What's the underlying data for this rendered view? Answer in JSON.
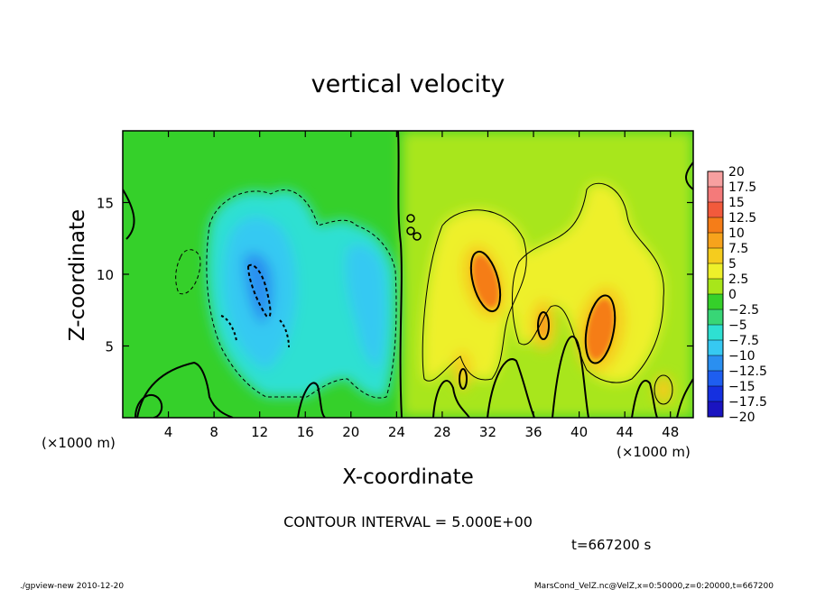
{
  "chart_data": {
    "type": "heatmap",
    "title": "vertical velocity",
    "xlabel": "X-coordinate",
    "ylabel": "Z-coordinate",
    "x_unit_left": "(×1000 m)",
    "x_unit_right": "(×1000 m)",
    "xlim": [
      0,
      50
    ],
    "ylim": [
      0,
      20
    ],
    "x_ticks": [
      4,
      8,
      12,
      16,
      20,
      24,
      28,
      32,
      36,
      40,
      44,
      48
    ],
    "y_ticks": [
      5,
      10,
      15
    ],
    "contour_interval_text": "CONTOUR INTERVAL = 5.000E+00",
    "time_text": "t=667200 s",
    "colorbar": {
      "levels": [
        "20",
        "17.5",
        "15",
        "12.5",
        "10",
        "7.5",
        "5",
        "2.5",
        "0",
        "-2.5",
        "-5",
        "-7.5",
        "-10",
        "-12.5",
        "-15",
        "-17.5",
        "-20"
      ],
      "colors": [
        "#f7a0a0",
        "#f47a7a",
        "#f25a3c",
        "#f57d18",
        "#f7a31c",
        "#f5cc1e",
        "#eef02a",
        "#a8e61a",
        "#35d02a",
        "#38d676",
        "#2ee0d2",
        "#36c9f2",
        "#2a8ff0",
        "#1e5ef0",
        "#1530e0",
        "#1a14c0",
        "#7418c0"
      ]
    },
    "features": [
      {
        "kind": "updraft",
        "x": 31.3,
        "z": 10.0,
        "peak": 12.5
      },
      {
        "kind": "updraft",
        "x": 41.5,
        "z": 6.5,
        "peak": 12.5
      },
      {
        "kind": "updraft",
        "x": 36.8,
        "z": 6.5,
        "peak": 10
      },
      {
        "kind": "downdraft",
        "x": 12.5,
        "z": 9.0,
        "peak": -10
      },
      {
        "kind": "downdraft",
        "x": 21.0,
        "z": 6.0,
        "peak": -7.5
      }
    ]
  },
  "footer": {
    "left": "./gpview-new   2010-12-20",
    "right": "MarsCond_VelZ.nc@VelZ,x=0:50000,z=0:20000,t=667200"
  }
}
